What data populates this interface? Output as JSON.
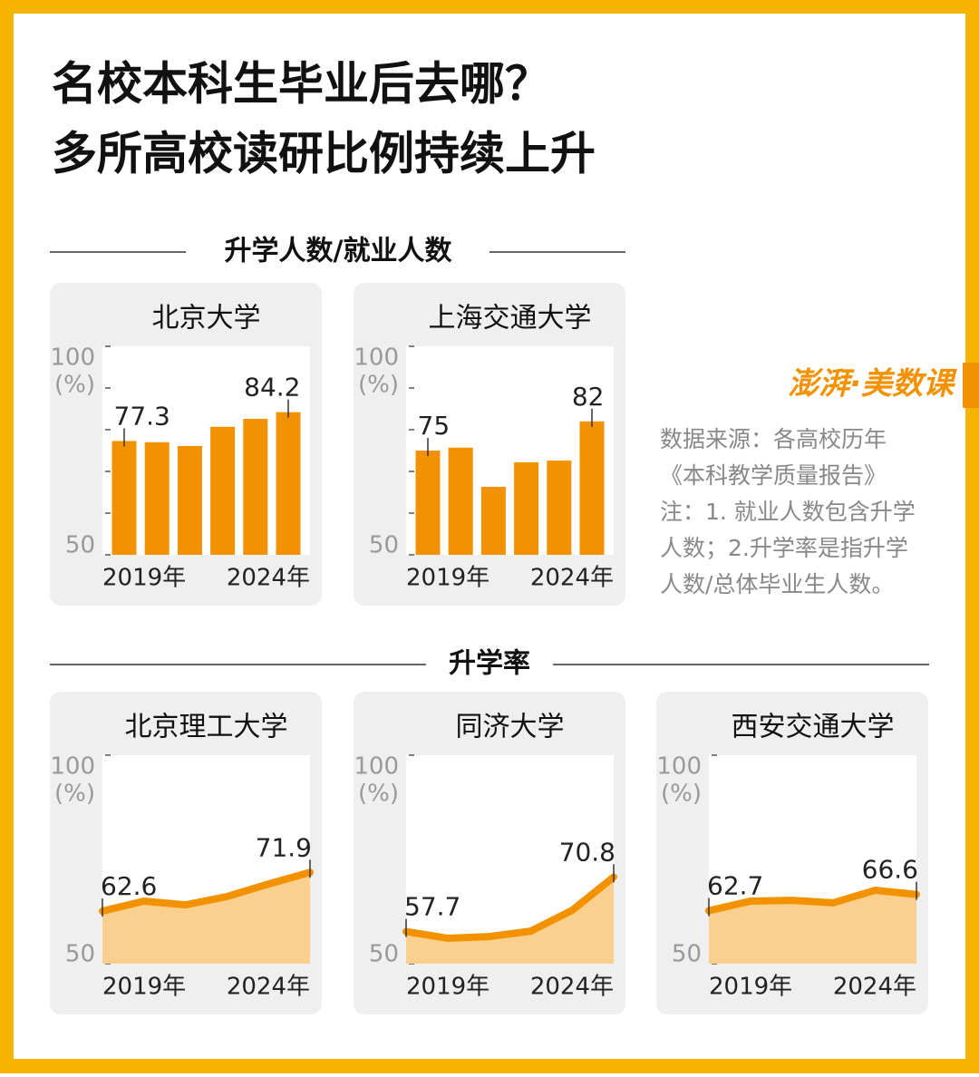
{
  "title": [
    "名校本科生毕业后去哪？",
    "多所高校读研比例持续上升"
  ],
  "sections": [
    "升学人数/就业人数",
    "升学率"
  ],
  "logo": "澎湃·美数课",
  "notes": [
    "数据来源：各高校历年",
    "《本科教学质量报告》",
    "注：1. 就业人数包含升学",
    "人数；2.升学率是指升学",
    "人数/总体毕业生人数。"
  ],
  "chart_data": [
    {
      "type": "bar",
      "title": "北京大学",
      "categories": [
        "2019年",
        null,
        null,
        null,
        null,
        "2024年"
      ],
      "values": [
        77.3,
        77.0,
        76.1,
        80.7,
        82.6,
        84.2
      ],
      "color": "#f39200",
      "ylim": [
        50,
        100
      ],
      "yticks": [
        50,
        100
      ],
      "minor_yticks": [
        60,
        70,
        80,
        90
      ],
      "y_unit": "(%)",
      "label_points": "ends"
    },
    {
      "type": "bar",
      "title": "上海交通大学",
      "categories": [
        "2019年",
        null,
        null,
        null,
        null,
        "2024年"
      ],
      "values": [
        75.0,
        75.7,
        66.3,
        72.2,
        72.6,
        82.0
      ],
      "color": "#f39200",
      "ylim": [
        50,
        100
      ],
      "yticks": [
        50,
        100
      ],
      "minor_yticks": [
        60,
        70,
        80,
        90
      ],
      "y_unit": "(%)",
      "label_points": "ends"
    },
    {
      "type": "area",
      "title": "北京理工大学",
      "categories": [
        "2019年",
        null,
        null,
        null,
        null,
        "2024年"
      ],
      "values": [
        62.6,
        65.0,
        64.1,
        66.1,
        69.1,
        71.9
      ],
      "color": "#f39200",
      "area_color": "#fbd08f",
      "ylim": [
        50,
        100
      ],
      "yticks": [
        50,
        100
      ],
      "y_unit": "(%)",
      "label_points": "ends"
    },
    {
      "type": "area",
      "title": "同济大学",
      "categories": [
        "2019年",
        null,
        null,
        null,
        null,
        "2024年"
      ],
      "values": [
        57.7,
        56.1,
        56.5,
        57.8,
        62.8,
        70.8
      ],
      "color": "#f39200",
      "area_color": "#fbd08f",
      "ylim": [
        50,
        100
      ],
      "yticks": [
        50,
        100
      ],
      "y_unit": "(%)",
      "label_points": "ends"
    },
    {
      "type": "area",
      "title": "西安交通大学",
      "categories": [
        "2019年",
        null,
        null,
        null,
        null,
        "2024年"
      ],
      "values": [
        62.7,
        65.0,
        65.2,
        64.6,
        67.6,
        66.6
      ],
      "color": "#f39200",
      "area_color": "#fbd08f",
      "ylim": [
        50,
        100
      ],
      "yticks": [
        50,
        100
      ],
      "y_unit": "(%)",
      "label_points": "ends"
    }
  ]
}
